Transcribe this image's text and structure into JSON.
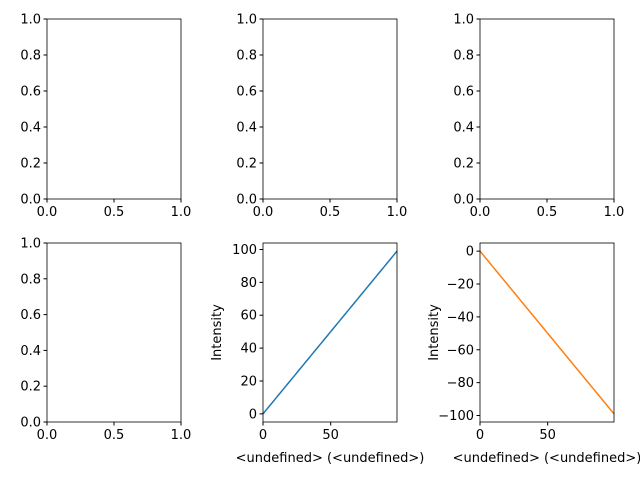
{
  "chart_data": [
    {
      "type": "line",
      "xlim": [
        0,
        1
      ],
      "ylim": [
        0,
        1
      ],
      "xticks": [
        {
          "value": 0,
          "label": "0.0"
        },
        {
          "value": 0.5,
          "label": "0.5"
        },
        {
          "value": 1,
          "label": "1.0"
        }
      ],
      "yticks": [
        {
          "value": 0,
          "label": "0.0"
        },
        {
          "value": 0.2,
          "label": "0.2"
        },
        {
          "value": 0.4,
          "label": "0.4"
        },
        {
          "value": 0.6,
          "label": "0.6"
        },
        {
          "value": 0.8,
          "label": "0.8"
        },
        {
          "value": 1,
          "label": "1.0"
        }
      ]
    },
    {
      "type": "line",
      "xlim": [
        0,
        1
      ],
      "ylim": [
        0,
        1
      ],
      "xticks": [
        {
          "value": 0,
          "label": "0.0"
        },
        {
          "value": 0.5,
          "label": "0.5"
        },
        {
          "value": 1,
          "label": "1.0"
        }
      ],
      "yticks": [
        {
          "value": 0,
          "label": "0.0"
        },
        {
          "value": 0.2,
          "label": "0.2"
        },
        {
          "value": 0.4,
          "label": "0.4"
        },
        {
          "value": 0.6,
          "label": "0.6"
        },
        {
          "value": 0.8,
          "label": "0.8"
        },
        {
          "value": 1,
          "label": "1.0"
        }
      ]
    },
    {
      "type": "line",
      "xlim": [
        0,
        1
      ],
      "ylim": [
        0,
        1
      ],
      "xticks": [
        {
          "value": 0,
          "label": "0.0"
        },
        {
          "value": 0.5,
          "label": "0.5"
        },
        {
          "value": 1,
          "label": "1.0"
        }
      ],
      "yticks": [
        {
          "value": 0,
          "label": "0.0"
        },
        {
          "value": 0.2,
          "label": "0.2"
        },
        {
          "value": 0.4,
          "label": "0.4"
        },
        {
          "value": 0.6,
          "label": "0.6"
        },
        {
          "value": 0.8,
          "label": "0.8"
        },
        {
          "value": 1,
          "label": "1.0"
        }
      ]
    },
    {
      "type": "line",
      "xlim": [
        0,
        1
      ],
      "ylim": [
        0,
        1
      ],
      "xticks": [
        {
          "value": 0,
          "label": "0.0"
        },
        {
          "value": 0.5,
          "label": "0.5"
        },
        {
          "value": 1,
          "label": "1.0"
        }
      ],
      "yticks": [
        {
          "value": 0,
          "label": "0.0"
        },
        {
          "value": 0.2,
          "label": "0.2"
        },
        {
          "value": 0.4,
          "label": "0.4"
        },
        {
          "value": 0.6,
          "label": "0.6"
        },
        {
          "value": 0.8,
          "label": "0.8"
        },
        {
          "value": 1,
          "label": "1.0"
        }
      ]
    },
    {
      "type": "line",
      "x_label": "<undefined> (<undefined>)",
      "y_label": "Intensity",
      "xlim": [
        0,
        99
      ],
      "ylim": [
        -4.95,
        103.95
      ],
      "xticks": [
        0,
        50
      ],
      "yticks": [
        0,
        20,
        40,
        60,
        80,
        100
      ],
      "x": [
        0,
        1,
        2,
        3,
        4,
        5,
        6,
        7,
        8,
        9,
        10,
        11,
        12,
        13,
        14,
        15,
        16,
        17,
        18,
        19,
        20,
        21,
        22,
        23,
        24,
        25,
        26,
        27,
        28,
        29,
        30,
        31,
        32,
        33,
        34,
        35,
        36,
        37,
        38,
        39,
        40,
        41,
        42,
        43,
        44,
        45,
        46,
        47,
        48,
        49,
        50,
        51,
        52,
        53,
        54,
        55,
        56,
        57,
        58,
        59,
        60,
        61,
        62,
        63,
        64,
        65,
        66,
        67,
        68,
        69,
        70,
        71,
        72,
        73,
        74,
        75,
        76,
        77,
        78,
        79,
        80,
        81,
        82,
        83,
        84,
        85,
        86,
        87,
        88,
        89,
        90,
        91,
        92,
        93,
        94,
        95,
        96,
        97,
        98,
        99
      ],
      "series": [
        {
          "color": "#1f77b4",
          "values": [
            0,
            1,
            2,
            3,
            4,
            5,
            6,
            7,
            8,
            9,
            10,
            11,
            12,
            13,
            14,
            15,
            16,
            17,
            18,
            19,
            20,
            21,
            22,
            23,
            24,
            25,
            26,
            27,
            28,
            29,
            30,
            31,
            32,
            33,
            34,
            35,
            36,
            37,
            38,
            39,
            40,
            41,
            42,
            43,
            44,
            45,
            46,
            47,
            48,
            49,
            50,
            51,
            52,
            53,
            54,
            55,
            56,
            57,
            58,
            59,
            60,
            61,
            62,
            63,
            64,
            65,
            66,
            67,
            68,
            69,
            70,
            71,
            72,
            73,
            74,
            75,
            76,
            77,
            78,
            79,
            80,
            81,
            82,
            83,
            84,
            85,
            86,
            87,
            88,
            89,
            90,
            91,
            92,
            93,
            94,
            95,
            96,
            97,
            98,
            99
          ]
        }
      ]
    },
    {
      "type": "line",
      "x_label": "<undefined> (<undefined>)",
      "y_label": "Intensity",
      "xlim": [
        0,
        99
      ],
      "ylim": [
        -103.95,
        4.95
      ],
      "xticks": [
        0,
        50
      ],
      "yticks": [
        0,
        {
          "value": -20,
          "label": "−20"
        },
        {
          "value": -40,
          "label": "−40"
        },
        {
          "value": -60,
          "label": "−60"
        },
        {
          "value": -80,
          "label": "−80"
        },
        {
          "value": -100,
          "label": "−100"
        }
      ],
      "x": [
        0,
        1,
        2,
        3,
        4,
        5,
        6,
        7,
        8,
        9,
        10,
        11,
        12,
        13,
        14,
        15,
        16,
        17,
        18,
        19,
        20,
        21,
        22,
        23,
        24,
        25,
        26,
        27,
        28,
        29,
        30,
        31,
        32,
        33,
        34,
        35,
        36,
        37,
        38,
        39,
        40,
        41,
        42,
        43,
        44,
        45,
        46,
        47,
        48,
        49,
        50,
        51,
        52,
        53,
        54,
        55,
        56,
        57,
        58,
        59,
        60,
        61,
        62,
        63,
        64,
        65,
        66,
        67,
        68,
        69,
        70,
        71,
        72,
        73,
        74,
        75,
        76,
        77,
        78,
        79,
        80,
        81,
        82,
        83,
        84,
        85,
        86,
        87,
        88,
        89,
        90,
        91,
        92,
        93,
        94,
        95,
        96,
        97,
        98,
        99
      ],
      "series": [
        {
          "color": "#ff7f0e",
          "values": [
            0,
            -1,
            -2,
            -3,
            -4,
            -5,
            -6,
            -7,
            -8,
            -9,
            -10,
            -11,
            -12,
            -13,
            -14,
            -15,
            -16,
            -17,
            -18,
            -19,
            -20,
            -21,
            -22,
            -23,
            -24,
            -25,
            -26,
            -27,
            -28,
            -29,
            -30,
            -31,
            -32,
            -33,
            -34,
            -35,
            -36,
            -37,
            -38,
            -39,
            -40,
            -41,
            -42,
            -43,
            -44,
            -45,
            -46,
            -47,
            -48,
            -49,
            -50,
            -51,
            -52,
            -53,
            -54,
            -55,
            -56,
            -57,
            -58,
            -59,
            -60,
            -61,
            -62,
            -63,
            -64,
            -65,
            -66,
            -67,
            -68,
            -69,
            -70,
            -71,
            -72,
            -73,
            -74,
            -75,
            -76,
            -77,
            -78,
            -79,
            -80,
            -81,
            -82,
            -83,
            -84,
            -85,
            -86,
            -87,
            -88,
            -89,
            -90,
            -91,
            -92,
            -93,
            -94,
            -95,
            -96,
            -97,
            -98,
            -99
          ]
        }
      ]
    }
  ]
}
